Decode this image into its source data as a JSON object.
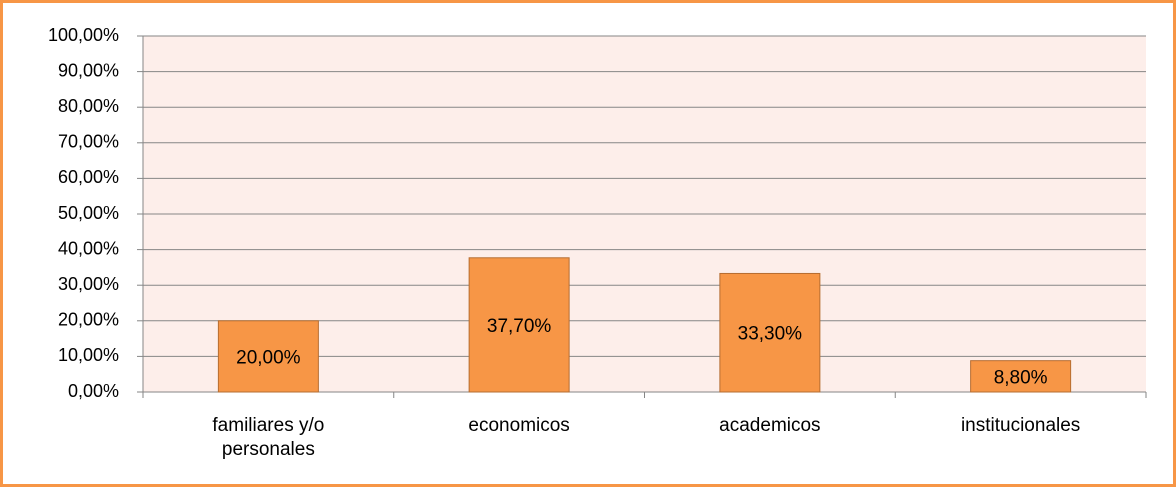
{
  "chart_data": {
    "type": "bar",
    "categories": [
      "familiares y/o personales",
      "economicos",
      "academicos",
      "institucionales"
    ],
    "values": [
      20,
      37.7,
      33.3,
      8.8
    ],
    "value_labels": [
      "20,00%",
      "37,70%",
      "33,30%",
      "8,80%"
    ],
    "color": "#f79646",
    "ylim": [
      0,
      100
    ],
    "yticks": [
      {
        "value": 0,
        "label": "0,00%"
      },
      {
        "value": 10,
        "label": "10,00%"
      },
      {
        "value": 20,
        "label": "20,00%"
      },
      {
        "value": 30,
        "label": "30,00%"
      },
      {
        "value": 40,
        "label": "40,00%"
      },
      {
        "value": 50,
        "label": "50,00%"
      },
      {
        "value": 60,
        "label": "60,00%"
      },
      {
        "value": 70,
        "label": "70,00%"
      },
      {
        "value": 80,
        "label": "80,00%"
      },
      {
        "value": 90,
        "label": "90,00%"
      },
      {
        "value": 100,
        "label": "100,00%"
      }
    ],
    "grid": true
  }
}
